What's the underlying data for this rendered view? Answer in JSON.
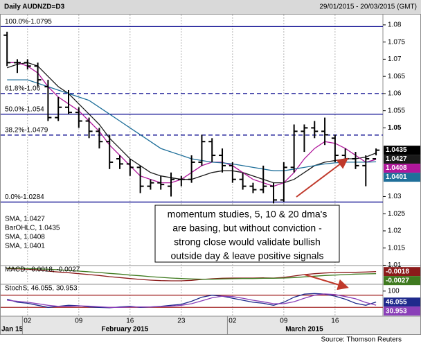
{
  "header": {
    "title": "Daily AUDNZD=D3",
    "date_range": "29/01/2015 - 20/03/2015 (GMT)"
  },
  "annotation": {
    "lines": [
      "momentum studies, 5, 10 & 20 dma's",
      "are basing, but without conviction -",
      "strong close would validate bullish",
      "outside day & leave positive signals"
    ]
  },
  "source": "Source: Thomson Reuters",
  "chart_data": [
    {
      "type": "ohlc",
      "xlim": [
        -0.35,
        36.67
      ],
      "xticks": [
        {
          "value": 2,
          "label": "02"
        },
        {
          "value": 7,
          "label": "09"
        },
        {
          "value": 12,
          "label": "16"
        },
        {
          "value": 17,
          "label": "23"
        },
        {
          "value": 22,
          "label": "02"
        },
        {
          "value": 27,
          "label": "09"
        },
        {
          "value": 32,
          "label": "16"
        }
      ],
      "month_labels": [
        {
          "value": 0,
          "label": "Jan 15"
        },
        {
          "value": 2,
          "label": "February 2015"
        },
        {
          "value": 22,
          "label": "March 2015"
        }
      ],
      "grid": "x",
      "ylim": [
        1.0105,
        1.0824
      ],
      "yticks": [
        1.08,
        1.075,
        1.07,
        1.065,
        1.06,
        1.055,
        1.05,
        1.03,
        1.025,
        1.02,
        1.015,
        1.01
      ],
      "levels": [
        {
          "label": "100.0%-1.0795",
          "value": 1.0795,
          "dashed": false
        },
        {
          "label": "61.8%-1.06",
          "value": 1.06,
          "dashed": true
        },
        {
          "label": "50.0%-1.054",
          "value": 1.054,
          "dashed": false
        },
        {
          "label": "38.2%-1.0479",
          "value": 1.0479,
          "dashed": true
        },
        {
          "label": "0.0%-1.0284",
          "value": 1.0284,
          "dashed": false
        }
      ],
      "level_color": "#00008b",
      "ohlc": {
        "name": "BarOHLC, 1.0435",
        "color": "#000000",
        "open": [
          1.077,
          1.069,
          1.069,
          1.068,
          1.062,
          1.053,
          1.056,
          1.0545,
          1.052,
          1.049,
          1.046,
          1.041,
          1.0395,
          1.0385,
          1.033,
          1.034,
          1.033,
          1.035,
          1.035,
          1.04,
          1.046,
          1.042,
          1.039,
          1.035,
          1.033,
          1.032,
          1.033,
          1.029,
          1.0385,
          1.049,
          1.05,
          1.049,
          1.047,
          1.042,
          1.041,
          1.039,
          1.041
        ],
        "high": [
          1.078,
          1.07,
          1.07,
          1.069,
          1.064,
          1.059,
          1.061,
          1.056,
          1.053,
          1.05,
          1.048,
          1.042,
          1.041,
          1.039,
          1.035,
          1.036,
          1.037,
          1.036,
          1.042,
          1.048,
          1.047,
          1.044,
          1.04,
          1.037,
          1.034,
          1.039,
          1.034,
          1.04,
          1.051,
          1.051,
          1.052,
          1.053,
          1.048,
          1.044,
          1.043,
          1.042,
          1.044
        ],
        "low": [
          1.068,
          1.066,
          1.067,
          1.062,
          1.052,
          1.052,
          1.054,
          1.05,
          1.047,
          1.044,
          1.038,
          1.038,
          1.036,
          1.031,
          1.032,
          1.032,
          1.03,
          1.033,
          1.034,
          1.039,
          1.04,
          1.037,
          1.034,
          1.032,
          1.031,
          1.031,
          1.028,
          1.0285,
          1.037,
          1.043,
          1.047,
          1.045,
          1.04,
          1.04,
          1.038,
          1.033,
          1.042
        ],
        "close": [
          1.069,
          1.069,
          1.068,
          1.064,
          1.053,
          1.056,
          1.0545,
          1.052,
          1.049,
          1.046,
          1.04,
          1.0395,
          1.0385,
          1.033,
          1.034,
          1.0335,
          1.035,
          1.035,
          1.04,
          1.046,
          1.042,
          1.039,
          1.035,
          1.033,
          1.032,
          1.033,
          1.029,
          1.0385,
          1.049,
          1.05,
          1.049,
          1.048,
          1.042,
          1.041,
          1.039,
          1.041,
          1.0435
        ]
      },
      "series": [
        {
          "name": "SMA, 1.0427",
          "color": "#1a1a1a",
          "values": [
            1.0675,
            1.0685,
            1.069,
            1.068,
            1.065,
            1.062,
            1.06,
            1.057,
            1.054,
            1.051,
            1.047,
            1.044,
            1.041,
            1.039,
            1.037,
            1.036,
            1.0355,
            1.035,
            1.035,
            1.036,
            1.037,
            1.0375,
            1.0375,
            1.037,
            1.036,
            1.035,
            1.034,
            1.034,
            1.035,
            1.037,
            1.039,
            1.04,
            1.0405,
            1.041,
            1.041,
            1.0415,
            1.0427
          ]
        },
        {
          "name": "SMA, 1.0408",
          "color": "#b0169b",
          "values": [
            1.069,
            1.069,
            1.068,
            1.066,
            1.062,
            1.059,
            1.057,
            1.055,
            1.052,
            1.049,
            1.045,
            1.042,
            1.039,
            1.036,
            1.035,
            1.034,
            1.034,
            1.035,
            1.037,
            1.039,
            1.04,
            1.04,
            1.039,
            1.037,
            1.035,
            1.034,
            1.033,
            1.034,
            1.037,
            1.041,
            1.044,
            1.046,
            1.0455,
            1.044,
            1.042,
            1.04,
            1.0408
          ]
        },
        {
          "name": "SMA, 1.0401",
          "color": "#1f6f9a",
          "values": [
            1.064,
            1.064,
            1.064,
            1.063,
            1.062,
            1.061,
            1.06,
            1.059,
            1.058,
            1.056,
            1.054,
            1.052,
            1.05,
            1.048,
            1.046,
            1.044,
            1.043,
            1.042,
            1.041,
            1.0405,
            1.04,
            1.0398,
            1.0395,
            1.039,
            1.0385,
            1.038,
            1.0375,
            1.0375,
            1.038,
            1.0385,
            1.039,
            1.0395,
            1.0398,
            1.04,
            1.04,
            1.04,
            1.0401
          ]
        }
      ]
    },
    {
      "type": "line",
      "title": "MACD, -0.0018, -0.0027",
      "ylim": [
        -0.007,
        0.0005
      ],
      "series": [
        {
          "color": "#8b1a1a",
          "values": [
            -0.0005,
            -0.0006,
            -0.0008,
            -0.0011,
            -0.0016,
            -0.002,
            -0.0023,
            -0.0027,
            -0.0031,
            -0.0035,
            -0.004,
            -0.0044,
            -0.0048,
            -0.0052,
            -0.0055,
            -0.0057,
            -0.0058,
            -0.0058,
            -0.0056,
            -0.0052,
            -0.0049,
            -0.0047,
            -0.0046,
            -0.0046,
            -0.0046,
            -0.0045,
            -0.0046,
            -0.0043,
            -0.0037,
            -0.0031,
            -0.0027,
            -0.0024,
            -0.0022,
            -0.0021,
            -0.0021,
            -0.002,
            -0.0018
          ]
        },
        {
          "color": "#3f7a1f",
          "values": [
            -0.0003,
            -0.0004,
            -0.0005,
            -0.0006,
            -0.0008,
            -0.001,
            -0.0013,
            -0.0016,
            -0.0019,
            -0.0022,
            -0.0026,
            -0.0029,
            -0.0033,
            -0.0036,
            -0.004,
            -0.0043,
            -0.0046,
            -0.0048,
            -0.005,
            -0.0051,
            -0.0051,
            -0.005,
            -0.0049,
            -0.0048,
            -0.0048,
            -0.0047,
            -0.0047,
            -0.0046,
            -0.0044,
            -0.0041,
            -0.0038,
            -0.0035,
            -0.0033,
            -0.0031,
            -0.0029,
            -0.0028,
            -0.0027
          ]
        }
      ]
    },
    {
      "type": "line",
      "title": "StochS, 46.055, 30.953",
      "ylim": [
        -20,
        130
      ],
      "yticks": [
        100
      ],
      "levels": [
        {
          "value": 80
        },
        {
          "value": 20
        }
      ],
      "level_color": "#a52a2a",
      "series": [
        {
          "color": "#1f2a8c",
          "values": [
            60,
            45,
            40,
            30,
            20,
            25,
            30,
            28,
            22,
            20,
            18,
            22,
            25,
            20,
            22,
            25,
            30,
            35,
            50,
            70,
            80,
            75,
            65,
            55,
            45,
            40,
            30,
            45,
            70,
            85,
            88,
            85,
            75,
            60,
            40,
            30,
            46.055
          ]
        },
        {
          "color": "#8a3fb8",
          "values": [
            55,
            50,
            45,
            38,
            30,
            25,
            25,
            27,
            26,
            23,
            20,
            20,
            22,
            22,
            22,
            24,
            26,
            30,
            38,
            52,
            67,
            75,
            73,
            65,
            55,
            47,
            38,
            38,
            48,
            65,
            80,
            86,
            83,
            73,
            62,
            44,
            30.953
          ]
        }
      ]
    }
  ]
}
